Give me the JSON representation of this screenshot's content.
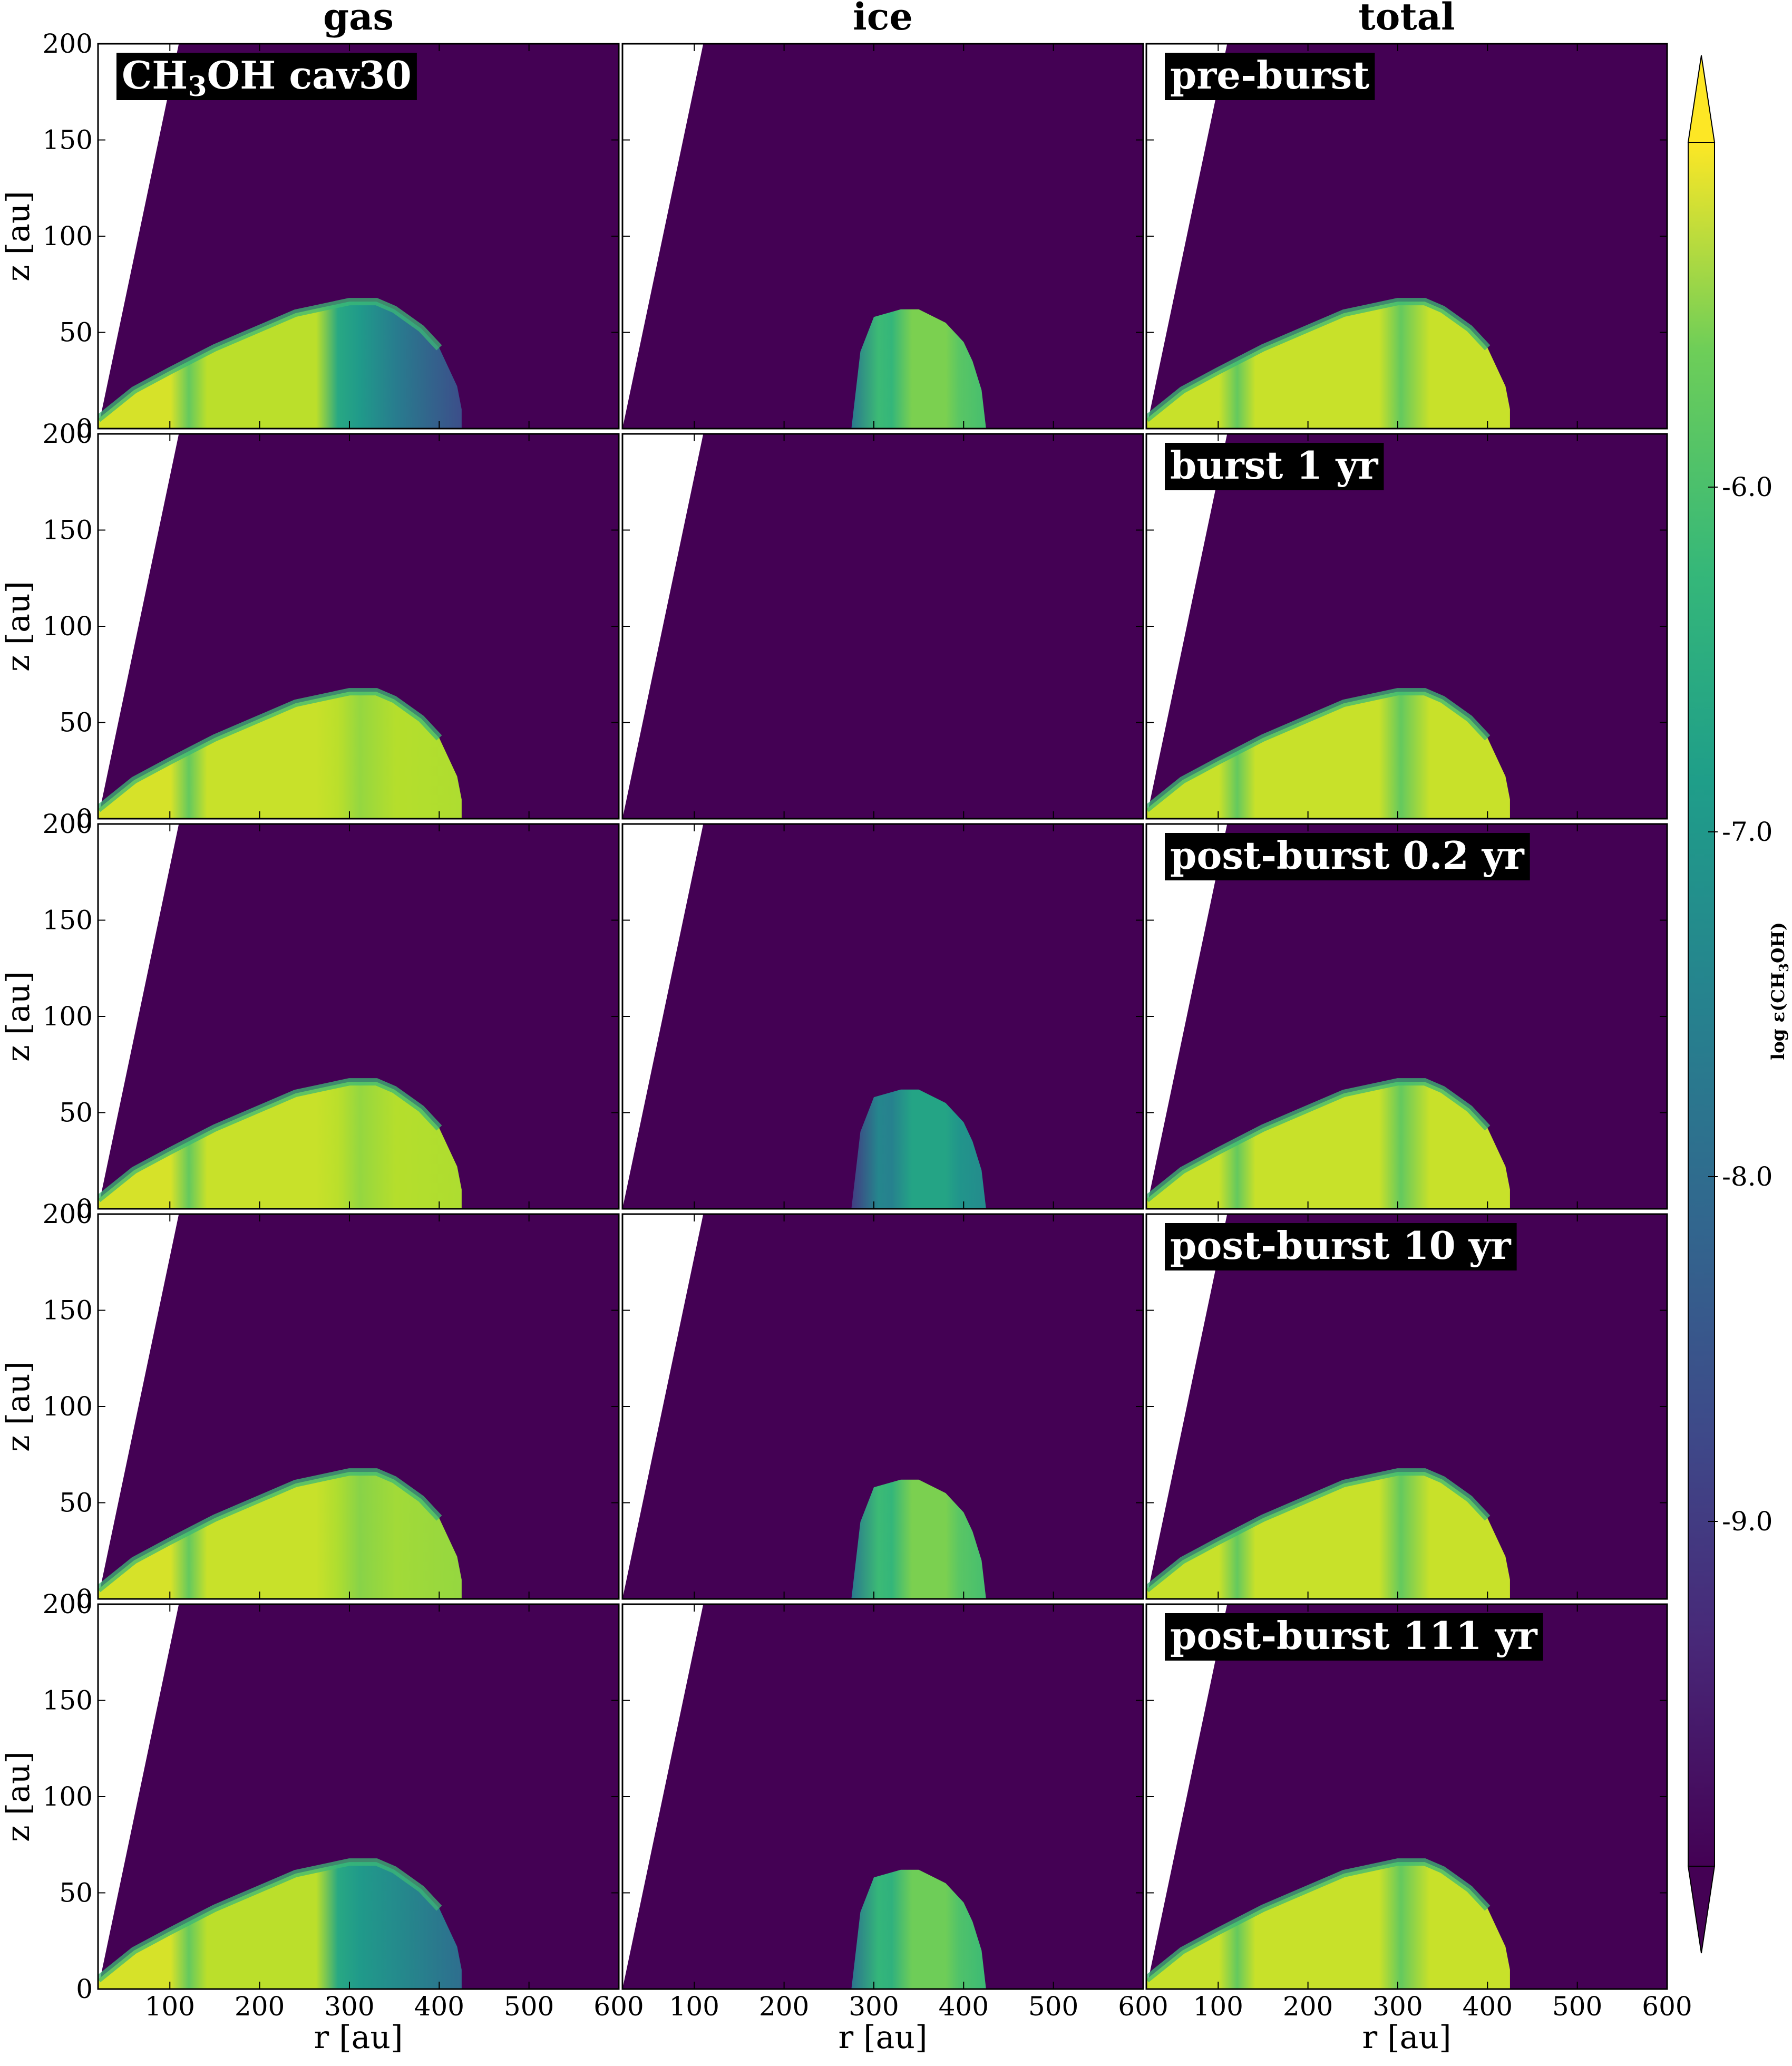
{
  "figure": {
    "columns": [
      "gas",
      "ice",
      "total"
    ],
    "panel_labels": [
      "pre-burst",
      "burst 1 yr",
      "post-burst 0.2 yr",
      "post-burst 10 yr",
      "post-burst 111 yr"
    ],
    "species_label": {
      "prefix": "CH",
      "sub": "3",
      "suffix": "OH  cav30"
    }
  },
  "colors": {
    "background": "#440154",
    "colormap": [
      "#440154",
      "#3b528b",
      "#21918c",
      "#5ec962",
      "#fde725"
    ]
  },
  "chart_data": {
    "type": "heatmap",
    "layout": "5 rows x 3 columns",
    "xlabel": "r [au]",
    "ylabel": "z [au]",
    "xlim": [
      20,
      600
    ],
    "ylim": [
      0,
      200
    ],
    "xticks": [
      100,
      200,
      300,
      400,
      500,
      600
    ],
    "yticks": [
      0,
      50,
      100,
      150,
      200
    ],
    "colorbar": {
      "label": "log ε(CH3OH)",
      "label_prefix": "log ε(CH",
      "label_sub": "3",
      "label_suffix": "OH)",
      "range": [
        -10.0,
        -5.0
      ],
      "ticks": [
        -6.0,
        -7.0,
        -8.0,
        -9.0
      ],
      "tick_labels": [
        "-6.0",
        "-7.0",
        "-8.0",
        "-9.0"
      ],
      "extend": "both"
    },
    "cavity_edge": {
      "r_at_z0": 20,
      "r_at_z200": 110
    },
    "disk_boundary": {
      "r": [
        20,
        60,
        100,
        150,
        200,
        240,
        270,
        300,
        330,
        350,
        380,
        400,
        410,
        420,
        425,
        425
      ],
      "z": [
        5,
        20,
        30,
        42,
        52,
        60,
        63,
        66,
        66,
        62,
        52,
        42,
        32,
        22,
        10,
        0
      ]
    },
    "ice_boundary": {
      "r": [
        275,
        285,
        300,
        330,
        350,
        380,
        400,
        410,
        420,
        425
      ],
      "z": [
        0,
        40,
        58,
        62,
        62,
        55,
        45,
        35,
        20,
        0
      ]
    },
    "panels": [
      {
        "time": "pre-burst",
        "gas": {
          "inner": -5.3,
          "mid": -5.5,
          "outer": -7.0,
          "edge": -8.8
        },
        "ice": {
          "present": true,
          "level": -6.0
        },
        "total": {
          "level": -5.4
        }
      },
      {
        "time": "burst 1 yr",
        "gas": {
          "inner": -5.3,
          "mid": -5.4,
          "outer": -5.5,
          "edge": -5.6
        },
        "ice": {
          "present": false,
          "level": null
        },
        "total": {
          "level": -5.4
        }
      },
      {
        "time": "post-burst 0.2 yr",
        "gas": {
          "inner": -5.3,
          "mid": -5.4,
          "outer": -5.5,
          "edge": -5.6
        },
        "ice": {
          "present": true,
          "level": -7.1
        },
        "total": {
          "level": -5.4
        }
      },
      {
        "time": "post-burst 10 yr",
        "gas": {
          "inner": -5.3,
          "mid": -5.4,
          "outer": -5.6,
          "edge": -5.8
        },
        "ice": {
          "present": true,
          "level": -6.0
        },
        "total": {
          "level": -5.4
        }
      },
      {
        "time": "post-burst 111 yr",
        "gas": {
          "inner": -5.3,
          "mid": -5.5,
          "outer": -7.0,
          "edge": -8.2
        },
        "ice": {
          "present": true,
          "level": -6.1
        },
        "total": {
          "level": -5.4
        }
      }
    ]
  }
}
